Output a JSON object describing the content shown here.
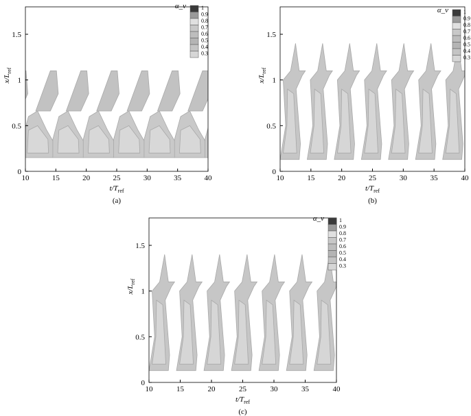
{
  "chart_data": [
    {
      "type": "contour",
      "caption": "(a)",
      "xlabel": {
        "text": "t/T",
        "subscript": "ref"
      },
      "ylabel": {
        "text": "x/L",
        "subscript": "ref"
      },
      "xlim": [
        10,
        40
      ],
      "xticks": [
        10,
        15,
        20,
        25,
        30,
        35,
        40
      ],
      "ylim": [
        0,
        1.8
      ],
      "yticks": [
        0,
        0.5,
        1,
        1.5
      ],
      "colorbar": {
        "title": "α_v",
        "levels": [
          1,
          0.9,
          0.8,
          0.7,
          0.6,
          0.5,
          0.4,
          0.3
        ],
        "colors": [
          "#3a3a3a",
          "#9a9a9a",
          "#e0e0e0",
          "#c8c8c8",
          "#bdbdbd",
          "#b4b4b4",
          "#c4c4c4",
          "#d6d6d6"
        ]
      }
    },
    {
      "type": "contour",
      "caption": "(b)",
      "xlabel": {
        "text": "t/T",
        "subscript": "ref"
      },
      "ylabel": {
        "text": "x/L",
        "subscript": "ref"
      },
      "xlim": [
        10,
        40
      ],
      "xticks": [
        10,
        15,
        20,
        25,
        30,
        35,
        40
      ],
      "ylim": [
        0,
        1.8
      ],
      "yticks": [
        0,
        0.5,
        1,
        1.5
      ],
      "colorbar": {
        "title": "α_v",
        "levels": [
          1,
          0.9,
          0.8,
          0.7,
          0.6,
          0.5,
          0.4,
          0.3
        ],
        "colors": [
          "#3a3a3a",
          "#9a9a9a",
          "#e0e0e0",
          "#c8c8c8",
          "#bdbdbd",
          "#b4b4b4",
          "#c4c4c4",
          "#d6d6d6"
        ]
      }
    },
    {
      "type": "contour",
      "caption": "(c)",
      "xlabel": {
        "text": "t/T",
        "subscript": "ref"
      },
      "ylabel": {
        "text": "x/L",
        "subscript": "ref"
      },
      "xlim": [
        10,
        40
      ],
      "xticks": [
        10,
        15,
        20,
        25,
        30,
        35,
        40
      ],
      "ylim": [
        0,
        1.8
      ],
      "yticks": [
        0,
        0.5,
        1,
        1.5
      ],
      "colorbar": {
        "title": "α_v",
        "levels": [
          1,
          0.9,
          0.8,
          0.7,
          0.6,
          0.5,
          0.4,
          0.3
        ],
        "colors": [
          "#3a3a3a",
          "#9a9a9a",
          "#e0e0e0",
          "#c8c8c8",
          "#bdbdbd",
          "#b4b4b4",
          "#c4c4c4",
          "#d6d6d6"
        ]
      }
    }
  ]
}
